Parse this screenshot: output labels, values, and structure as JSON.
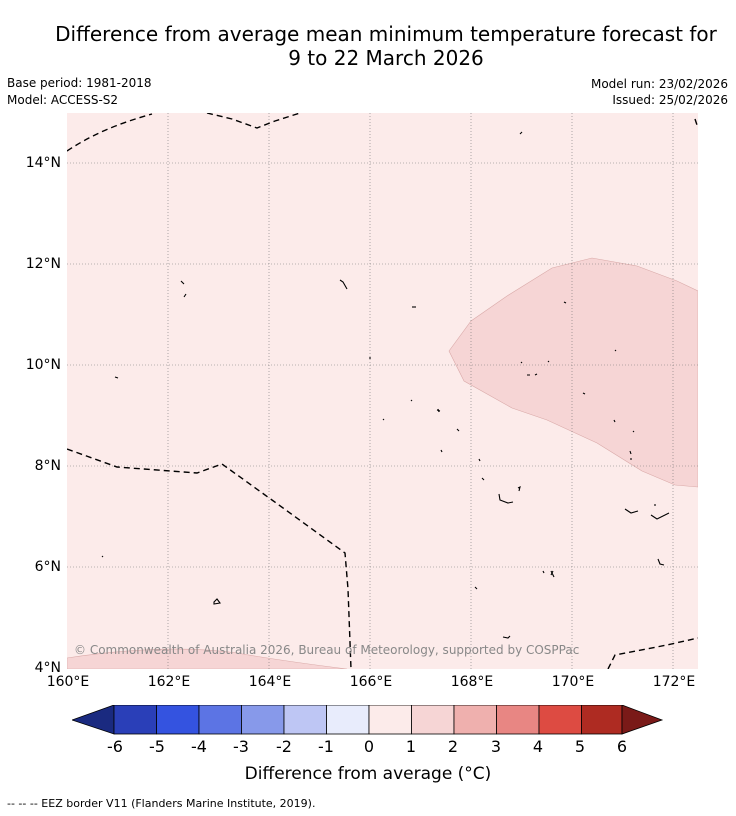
{
  "title_line1": "Difference from average mean minimum temperature forecast for",
  "title_line2": "9 to 22 March 2026",
  "base_period": "Base period: 1981-2018",
  "model": "Model: ACCESS-S2",
  "model_run": "Model run: 23/02/2026",
  "issued": "Issued: 25/02/2026",
  "copyright": "© Commonwealth of Australia 2026, Bureau of Meteorology, supported by COSPPac",
  "y_ticks": [
    "14°N",
    "12°N",
    "10°N",
    "8°N",
    "6°N",
    "4°N"
  ],
  "x_ticks": [
    "160°E",
    "162°E",
    "164°E",
    "166°E",
    "168°E",
    "170°E",
    "172°E"
  ],
  "colorbar": {
    "labels": [
      "-6",
      "-5",
      "-4",
      "-3",
      "-2",
      "-1",
      "0",
      "1",
      "2",
      "3",
      "4",
      "5",
      "6"
    ],
    "colors": [
      "#1a2a80",
      "#2a3fb8",
      "#3453e0",
      "#5c74e4",
      "#8799ea",
      "#bec6f4",
      "#e8ecfc",
      "#fcebea",
      "#f6d5d5",
      "#efb0ae",
      "#e88683",
      "#dd4b42",
      "#ae2b22",
      "#7a1a18"
    ],
    "title": "Difference from average (°C)"
  },
  "map_colors": {
    "background": "#fcebea",
    "warm_zone": "#f6d5d5"
  },
  "footer": "--  --  -- EEZ border V11 (Flanders Marine Institute, 2019)."
}
